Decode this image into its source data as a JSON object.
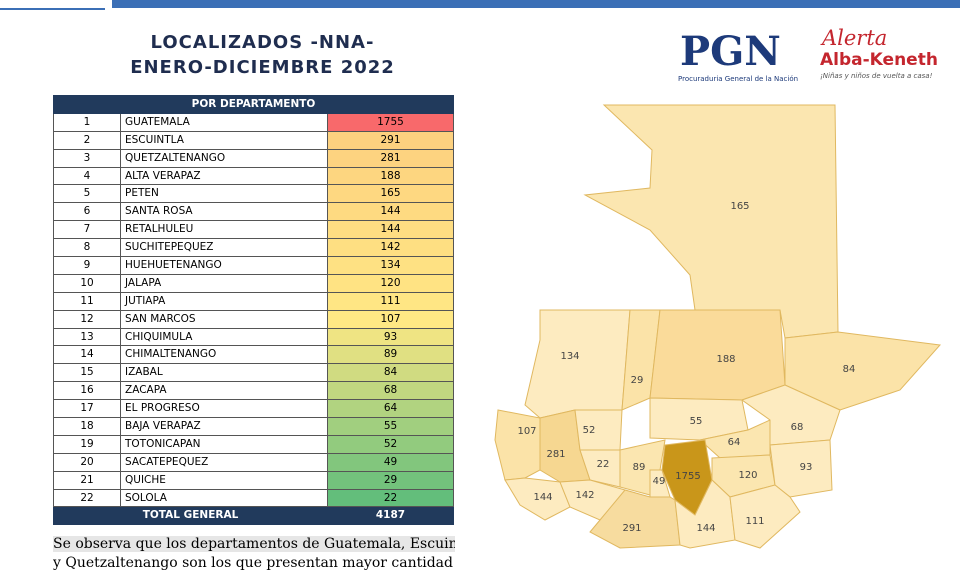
{
  "header": {
    "title_line1": "LOCALIZADOS -NNA-",
    "title_line2": "ENERO-DICIEMBRE 2022"
  },
  "logos": {
    "pgn": "PGN",
    "pgn_sub": "Procuraduria General de la Nación",
    "alerta": "Alerta",
    "alba": "Alba-Keneth",
    "alba_sub": "¡Niñas y niños de vuelta a casa!"
  },
  "table": {
    "heading": "POR DEPARTAMENTO",
    "rows": [
      [
        1,
        "GUATEMALA",
        1755
      ],
      [
        2,
        "ESCUINTLA",
        291
      ],
      [
        3,
        "QUETZALTENANGO",
        281
      ],
      [
        4,
        "ALTA VERAPAZ",
        188
      ],
      [
        5,
        "PETEN",
        165
      ],
      [
        6,
        "SANTA ROSA",
        144
      ],
      [
        7,
        "RETALHULEU",
        144
      ],
      [
        8,
        "SUCHITEPEQUEZ",
        142
      ],
      [
        9,
        "HUEHUETENANGO",
        134
      ],
      [
        10,
        "JALAPA",
        120
      ],
      [
        11,
        "JUTIAPA",
        111
      ],
      [
        12,
        "SAN MARCOS",
        107
      ],
      [
        13,
        "CHIQUIMULA",
        93
      ],
      [
        14,
        "CHIMALTENANGO",
        89
      ],
      [
        15,
        "IZABAL",
        84
      ],
      [
        16,
        "ZACAPA",
        68
      ],
      [
        17,
        "EL PROGRESO",
        64
      ],
      [
        18,
        "BAJA VERAPAZ",
        55
      ],
      [
        19,
        "TOTONICAPAN",
        52
      ],
      [
        20,
        "SACATEPEQUEZ",
        49
      ],
      [
        21,
        "QUICHE",
        29
      ],
      [
        22,
        "SOLOLA",
        22
      ]
    ],
    "total_label": "TOTAL GENERAL",
    "total_value": 4187
  },
  "map": {
    "labels": [
      165,
      134,
      188,
      84,
      29,
      55,
      107,
      52,
      64,
      68,
      281,
      22,
      89,
      1755,
      120,
      93,
      49,
      144,
      142,
      291,
      144,
      111
    ]
  },
  "footer": {
    "line1": "Se observa que los departamentos de Guatemala, Escuintla",
    "line2": "y Quetzaltenango son los que presentan mayor cantidad de"
  }
}
